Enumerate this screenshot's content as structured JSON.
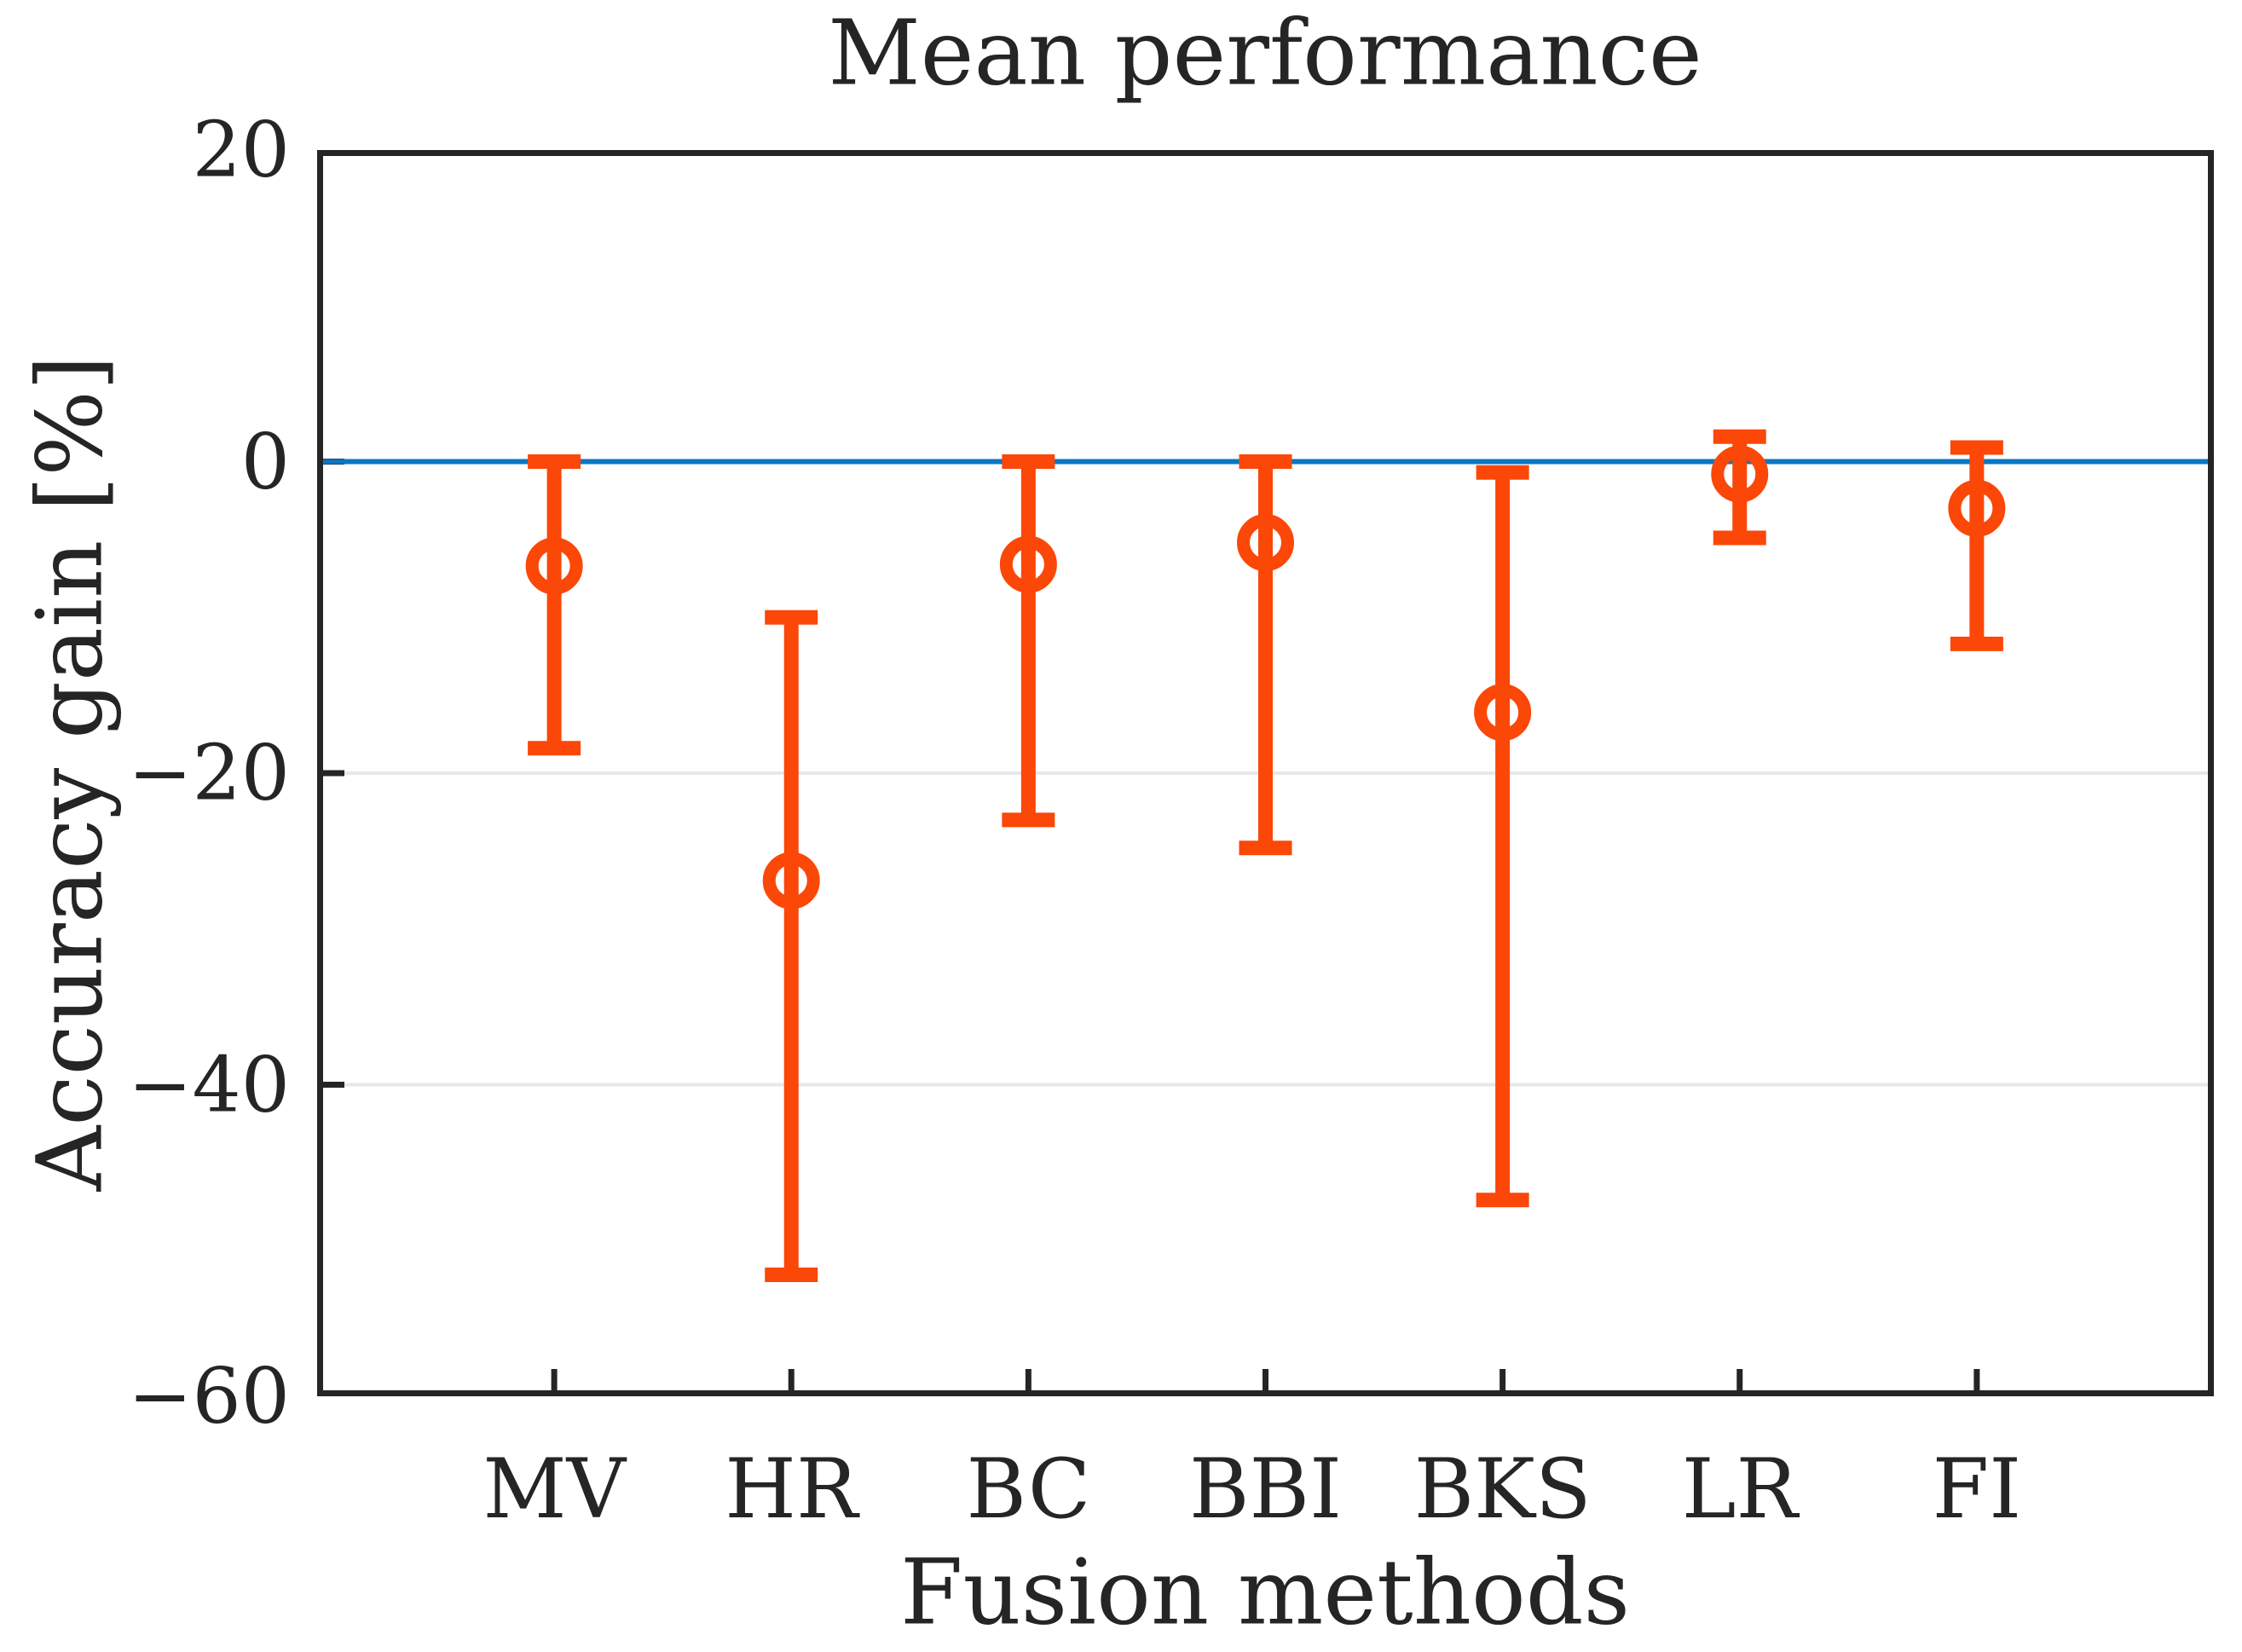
{
  "figure": {
    "title": "Mean performance",
    "xlabel": "Fusion methods",
    "ylabel": "Accuracy gain [%]"
  },
  "chart_data": {
    "type": "errorbar",
    "title": "Mean performance",
    "xlabel": "Fusion methods",
    "ylabel": "Accuracy gain [%]",
    "categories": [
      "MV",
      "HR",
      "BC",
      "BBI",
      "BKS",
      "LR",
      "FI"
    ],
    "series": [
      {
        "name": "mean accuracy gain",
        "values": [
          -6.7,
          -26.9,
          -6.6,
          -5.2,
          -16.1,
          -0.8,
          -3.0
        ],
        "upper": [
          0.0,
          -10.0,
          0.0,
          0.0,
          -0.7,
          1.6,
          0.9
        ],
        "lower": [
          -18.4,
          -52.2,
          -23.0,
          -24.8,
          -47.4,
          -4.9,
          -11.7
        ]
      }
    ],
    "ylim": [
      -60,
      20
    ],
    "yticks": [
      20,
      0,
      -20,
      -40,
      -60
    ],
    "ytick_labels": [
      "20",
      "0",
      "−20",
      "−40",
      "−60"
    ],
    "gridline_values": [
      -20,
      -40
    ],
    "zero_line_value": 0,
    "grid": "horizontal only, light gray",
    "legend_position": "none",
    "colors": {
      "errorbar": "#FB4708",
      "zero_line": "#0B76C2",
      "grid": "#E8E8E8",
      "axis": "#252525",
      "background": "#FFFFFF"
    }
  }
}
